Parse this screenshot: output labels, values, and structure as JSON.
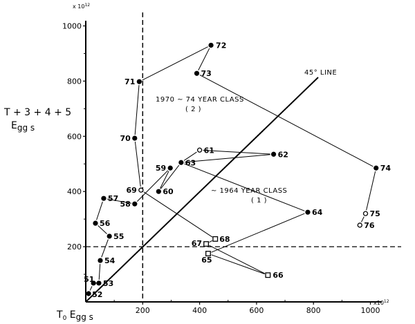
{
  "chart_data": {
    "type": "scatter",
    "title": "",
    "xlabel": "T0 Eggs",
    "ylabel": "T + 3 + 4 + 5 Eggs",
    "x_multiplier": "x10^12",
    "y_multiplier": "x10^12",
    "xlim": [
      0,
      1050
    ],
    "ylim": [
      0,
      1050
    ],
    "x_ticks": [
      200,
      400,
      600,
      800,
      1000
    ],
    "y_ticks": [
      200,
      400,
      600,
      800,
      1000
    ],
    "grid": false,
    "reference_lines": [
      {
        "name": "45° LINE",
        "type": "diagonal",
        "from": [
          0,
          0
        ],
        "to": [
          820,
          820
        ]
      },
      {
        "name": "x=200 dashed",
        "type": "vertical-dashed",
        "x": 200
      },
      {
        "name": "y=200 dashed",
        "type": "horizontal-dashed",
        "y": 200
      }
    ],
    "annotations": [
      {
        "text": "1970 ~ 74  YEAR CLASS",
        "sub": "( 2 )"
      },
      {
        "text": "~ 1964  YEAR CLASS",
        "sub": "( 1 )"
      },
      {
        "text": "45° LINE"
      }
    ],
    "series": [
      {
        "name": "year points",
        "points": [
          {
            "label": "51",
            "x": 27,
            "y": 68,
            "marker": "filled-circle"
          },
          {
            "label": "52",
            "x": 10,
            "y": 30,
            "marker": "filled-circle"
          },
          {
            "label": "53",
            "x": 46,
            "y": 68,
            "marker": "filled-circle"
          },
          {
            "label": "54",
            "x": 51,
            "y": 150,
            "marker": "filled-circle"
          },
          {
            "label": "55",
            "x": 83,
            "y": 238,
            "marker": "filled-circle"
          },
          {
            "label": "56",
            "x": 34,
            "y": 285,
            "marker": "filled-circle"
          },
          {
            "label": "57",
            "x": 63,
            "y": 375,
            "marker": "filled-circle"
          },
          {
            "label": "58",
            "x": 172,
            "y": 355,
            "marker": "filled-circle"
          },
          {
            "label": "59",
            "x": 297,
            "y": 485,
            "marker": "filled-circle"
          },
          {
            "label": "60",
            "x": 256,
            "y": 400,
            "marker": "filled-circle"
          },
          {
            "label": "61",
            "x": 400,
            "y": 550,
            "marker": "open-circle"
          },
          {
            "label": "62",
            "x": 660,
            "y": 535,
            "marker": "filled-circle"
          },
          {
            "label": "63",
            "x": 335,
            "y": 505,
            "marker": "filled-circle"
          },
          {
            "label": "64",
            "x": 780,
            "y": 325,
            "marker": "filled-circle"
          },
          {
            "label": "65",
            "x": 430,
            "y": 175,
            "marker": "open-square"
          },
          {
            "label": "66",
            "x": 640,
            "y": 97,
            "marker": "open-square"
          },
          {
            "label": "67",
            "x": 423,
            "y": 210,
            "marker": "open-square"
          },
          {
            "label": "68",
            "x": 455,
            "y": 228,
            "marker": "open-square"
          },
          {
            "label": "69",
            "x": 194,
            "y": 405,
            "marker": "open-circle"
          },
          {
            "label": "70",
            "x": 172,
            "y": 593,
            "marker": "filled-circle"
          },
          {
            "label": "71",
            "x": 188,
            "y": 798,
            "marker": "filled-circle"
          },
          {
            "label": "72",
            "x": 440,
            "y": 930,
            "marker": "filled-circle"
          },
          {
            "label": "73",
            "x": 390,
            "y": 828,
            "marker": "filled-circle"
          },
          {
            "label": "74",
            "x": 1020,
            "y": 485,
            "marker": "filled-circle"
          },
          {
            "label": "75",
            "x": 983,
            "y": 320,
            "marker": "open-circle"
          },
          {
            "label": "76",
            "x": 963,
            "y": 278,
            "marker": "open-circle"
          }
        ]
      }
    ],
    "connections": [
      [
        "52",
        "51"
      ],
      [
        "51",
        "53"
      ],
      [
        "53",
        "54"
      ],
      [
        "54",
        "55"
      ],
      [
        "55",
        "56"
      ],
      [
        "56",
        "57"
      ],
      [
        "57",
        "58"
      ],
      [
        "58",
        "59"
      ],
      [
        "59",
        "60"
      ],
      [
        "60",
        "63"
      ],
      [
        "63",
        "61"
      ],
      [
        "61",
        "62"
      ],
      [
        "62",
        "63"
      ],
      [
        "63",
        "64"
      ],
      [
        "64",
        "65"
      ],
      [
        "65",
        "66"
      ],
      [
        "66",
        "67"
      ],
      [
        "67",
        "68"
      ],
      [
        "68",
        "69"
      ],
      [
        "69",
        "70"
      ],
      [
        "70",
        "71"
      ],
      [
        "71",
        "72"
      ],
      [
        "72",
        "73"
      ],
      [
        "73",
        "74"
      ],
      [
        "74",
        "75"
      ],
      [
        "75",
        "76"
      ]
    ]
  }
}
